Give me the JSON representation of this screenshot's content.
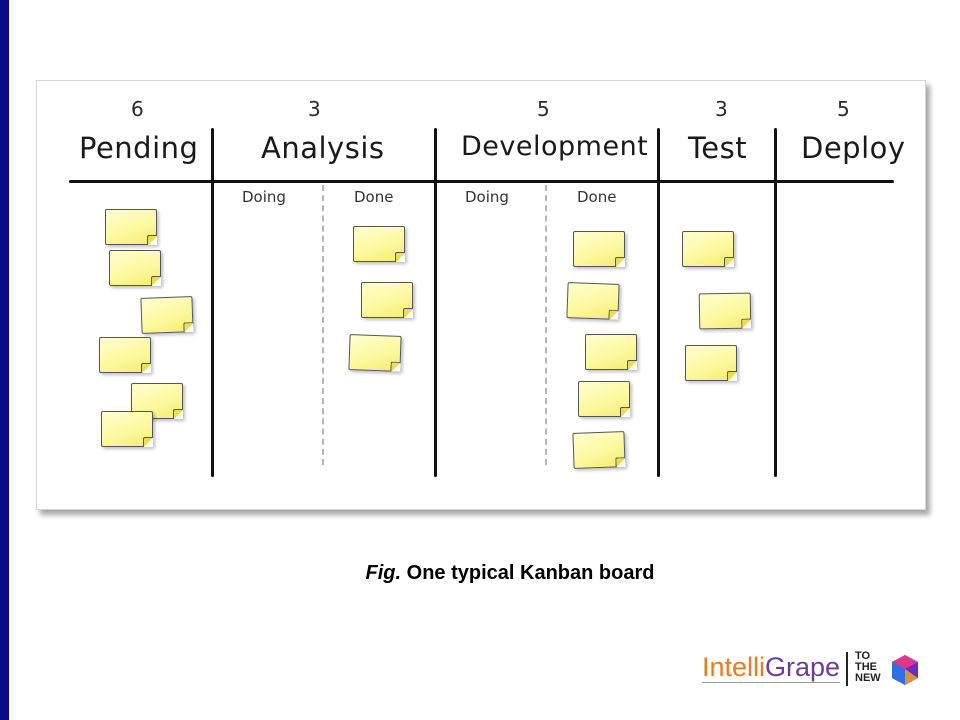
{
  "board": {
    "columns": [
      {
        "title": "Pending",
        "wip": "6"
      },
      {
        "title": "Analysis",
        "wip": "3",
        "sub": [
          "Doing",
          "Done"
        ]
      },
      {
        "title": "Development",
        "wip": "5",
        "sub": [
          "Doing",
          "Done"
        ]
      },
      {
        "title": "Test",
        "wip": "3"
      },
      {
        "title": "Deploy",
        "wip": "5"
      }
    ]
  },
  "caption": {
    "prefix": "Fig.",
    "text": "One typical Kanban board"
  },
  "logo": {
    "brand_part1": "Intelli",
    "brand_part2": "Grape",
    "tagline": [
      "TO",
      "THE",
      "NEW"
    ]
  },
  "colors": {
    "accent_bar": "#0a0a8c",
    "sticky_note": "#fdf9a0",
    "brand_orange": "#f07a1a",
    "brand_purple": "#6a3d9a"
  }
}
